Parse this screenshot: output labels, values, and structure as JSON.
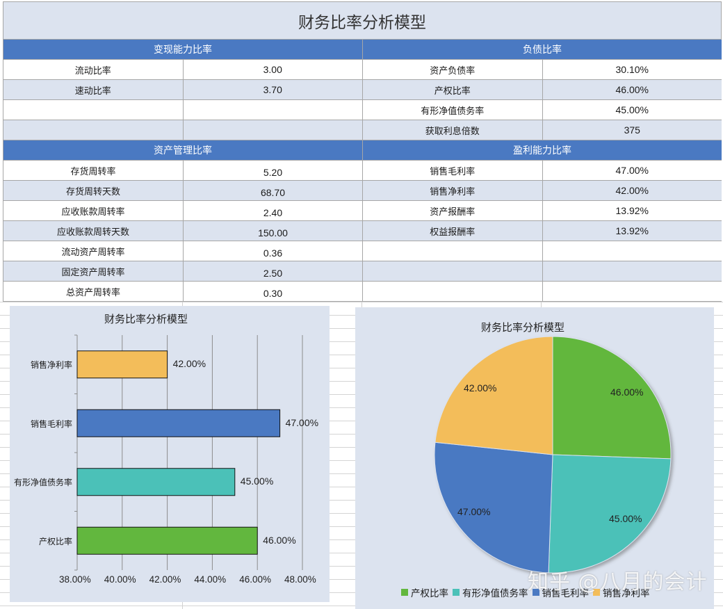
{
  "title": "财务比率分析模型",
  "sections": {
    "liquidity": {
      "header": "变现能力比率",
      "rows": [
        {
          "label": "流动比率",
          "value": "3.00"
        },
        {
          "label": "速动比率",
          "value": "3.70"
        },
        {
          "label": "",
          "value": ""
        },
        {
          "label": "",
          "value": ""
        }
      ]
    },
    "debt": {
      "header": "负债比率",
      "rows": [
        {
          "label": "资产负债率",
          "value": "30.10%"
        },
        {
          "label": "产权比率",
          "value": "46.00%"
        },
        {
          "label": "有形净值债务率",
          "value": "45.00%"
        },
        {
          "label": "获取利息倍数",
          "value": "375"
        }
      ]
    },
    "asset_mgmt": {
      "header": "资产管理比率",
      "rows": [
        {
          "label": "存货周转率",
          "value": "5.20"
        },
        {
          "label": "存货周转天数",
          "value": "68.70"
        },
        {
          "label": "应收账款周转率",
          "value": "2.40"
        },
        {
          "label": "应收账款周转天数",
          "value": "150.00"
        },
        {
          "label": "流动资产周转率",
          "value": "0.36"
        },
        {
          "label": "固定资产周转率",
          "value": "2.50"
        },
        {
          "label": "总资产周转率",
          "value": "0.30"
        }
      ]
    },
    "profitability": {
      "header": "盈利能力比率",
      "rows": [
        {
          "label": "销售毛利率",
          "value": "47.00%"
        },
        {
          "label": "销售净利率",
          "value": "42.00%"
        },
        {
          "label": "资产报酬率",
          "value": "13.92%"
        },
        {
          "label": "权益报酬率",
          "value": "13.92%"
        },
        {
          "label": "",
          "value": ""
        },
        {
          "label": "",
          "value": ""
        },
        {
          "label": "",
          "value": ""
        }
      ]
    }
  },
  "colors": {
    "header_blue": "#4a79c2",
    "band": "#dce3ef",
    "green": "#62b73e",
    "teal": "#4bc1b8",
    "blue": "#4a79c2",
    "orange": "#f3bd5a"
  },
  "watermark": "知乎 @八月的会计",
  "chart_data": [
    {
      "type": "bar",
      "orientation": "horizontal",
      "title": "财务比率分析模型",
      "categories": [
        "产权比率",
        "有形净值债务率",
        "销售毛利率",
        "销售净利率"
      ],
      "values": [
        46.0,
        45.0,
        47.0,
        42.0
      ],
      "value_labels": [
        "46.00%",
        "45.00%",
        "47.00%",
        "42.00%"
      ],
      "colors": [
        "#62b73e",
        "#4bc1b8",
        "#4a79c2",
        "#f3bd5a"
      ],
      "xlim": [
        38,
        48
      ],
      "xticks": [
        "38.00%",
        "40.00%",
        "42.00%",
        "44.00%",
        "46.00%",
        "48.00%"
      ],
      "xlabel": "",
      "ylabel": "",
      "grid": "vertical",
      "legend": "none"
    },
    {
      "type": "pie",
      "title": "财务比率分析模型",
      "categories": [
        "产权比率",
        "有形净值债务率",
        "销售毛利率",
        "销售净利率"
      ],
      "values": [
        46.0,
        45.0,
        47.0,
        42.0
      ],
      "value_labels": [
        "46.00%",
        "45.00%",
        "47.00%",
        "42.00%"
      ],
      "colors": [
        "#62b73e",
        "#4bc1b8",
        "#4a79c2",
        "#f3bd5a"
      ],
      "legend": "bottom"
    }
  ]
}
